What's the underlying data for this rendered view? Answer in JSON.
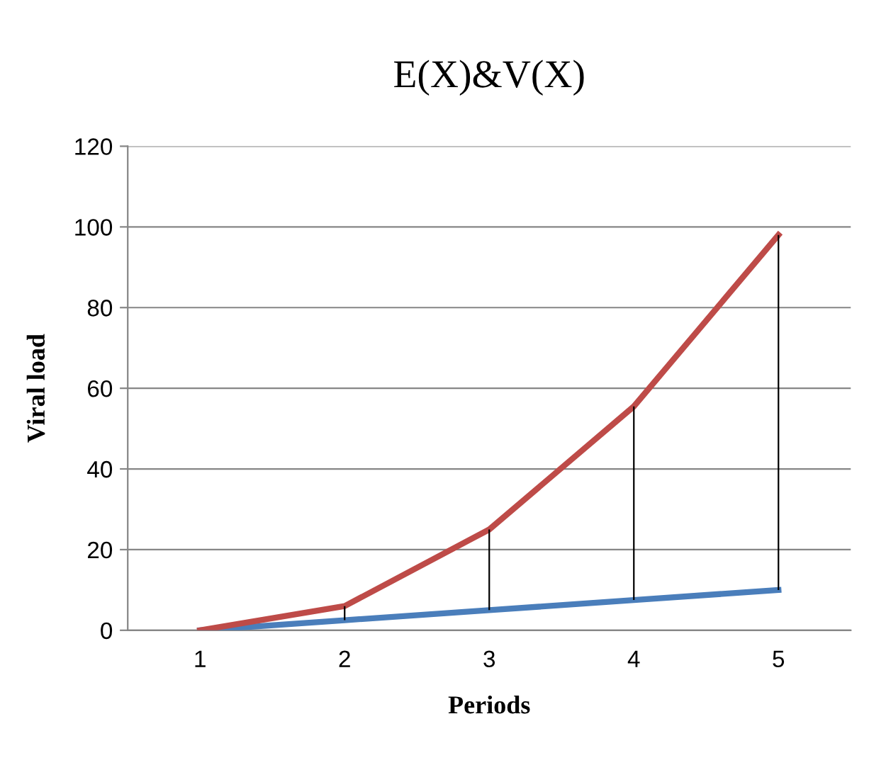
{
  "chart_data": {
    "type": "line",
    "title": "E(X)&V(X)",
    "xlabel": "Periods",
    "ylabel": "Viral load",
    "categories": [
      "1",
      "2",
      "3",
      "4",
      "5"
    ],
    "series": [
      {
        "color": "#4a7ebb",
        "values": [
          0,
          2.5,
          5,
          7.5,
          10
        ]
      },
      {
        "color": "#be4b48",
        "values": [
          0,
          6,
          25,
          55.5,
          98
        ],
        "errors": [
          null,
          [
            2.5,
            6
          ],
          [
            5,
            25
          ],
          [
            7.5,
            55.5
          ],
          [
            10,
            98
          ]
        ]
      }
    ],
    "ylim": [
      0,
      120
    ],
    "yticks": [
      0,
      20,
      40,
      60,
      80,
      100,
      120
    ],
    "grid": "y",
    "legend": false,
    "marker": "none",
    "line_style": "solid"
  }
}
